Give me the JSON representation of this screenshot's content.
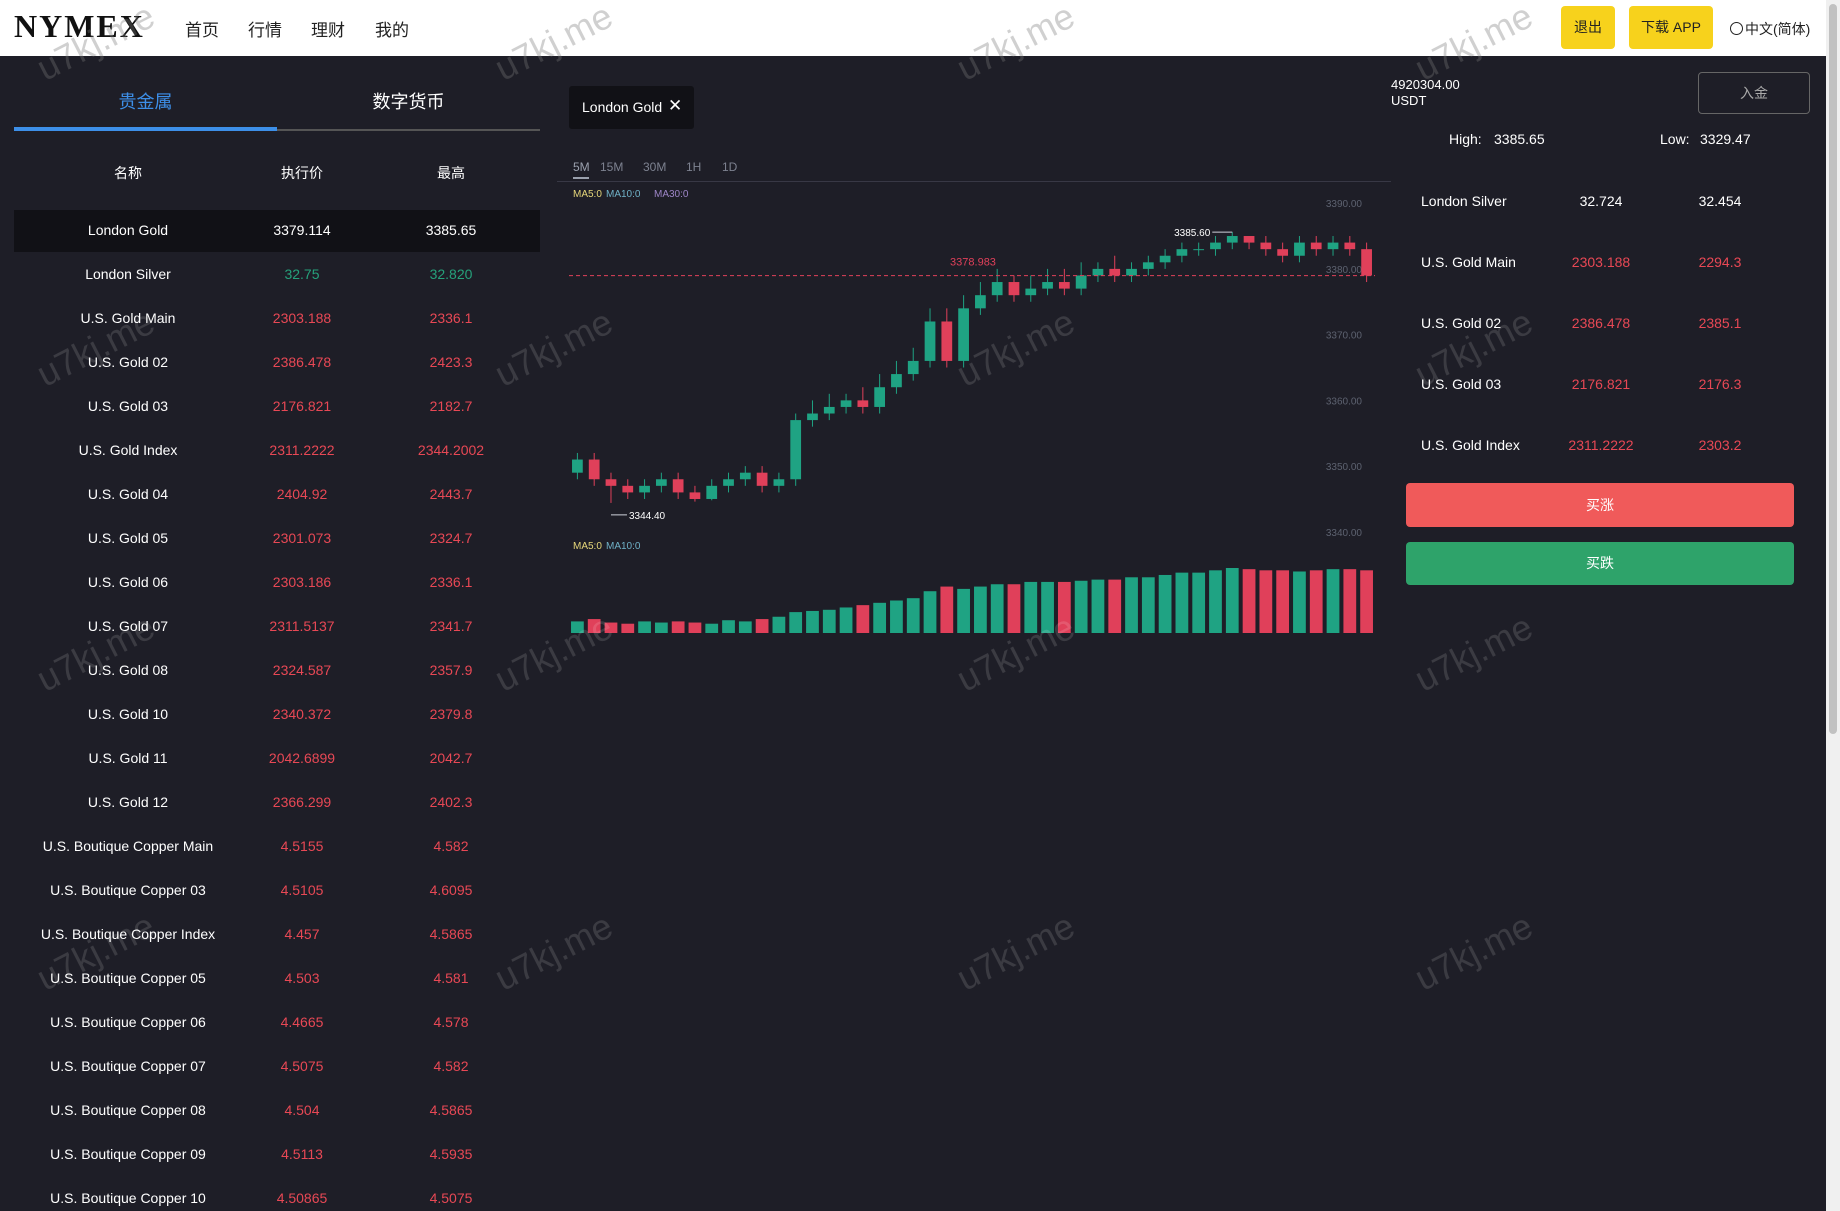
{
  "header": {
    "logo": "NYMEX",
    "nav": [
      "首页",
      "行情",
      "理财",
      "我的"
    ],
    "logout": "退出",
    "download": "下载 APP",
    "language": "中文(简体)"
  },
  "watermark": "u7kj.me",
  "market_list": {
    "tabs": [
      "贵金属",
      "数字货币"
    ],
    "columns": [
      "名称",
      "执行价",
      "最高"
    ],
    "rows": [
      {
        "name": "London Gold",
        "price": "3379.114",
        "high": "3385.65",
        "color": "#ffffff"
      },
      {
        "name": "London Silver",
        "price": "32.75",
        "high": "32.820",
        "color": "#26a17b"
      },
      {
        "name": "U.S. Gold Main",
        "price": "2303.188",
        "high": "2336.1",
        "color": "#e84855"
      },
      {
        "name": "U.S. Gold 02",
        "price": "2386.478",
        "high": "2423.3",
        "color": "#e84855"
      },
      {
        "name": "U.S. Gold 03",
        "price": "2176.821",
        "high": "2182.7",
        "color": "#e84855"
      },
      {
        "name": "U.S. Gold Index",
        "price": "2311.2222",
        "high": "2344.2002",
        "color": "#e84855"
      },
      {
        "name": "U.S. Gold 04",
        "price": "2404.92",
        "high": "2443.7",
        "color": "#e84855"
      },
      {
        "name": "U.S. Gold 05",
        "price": "2301.073",
        "high": "2324.7",
        "color": "#e84855"
      },
      {
        "name": "U.S. Gold 06",
        "price": "2303.186",
        "high": "2336.1",
        "color": "#e84855"
      },
      {
        "name": "U.S. Gold 07",
        "price": "2311.5137",
        "high": "2341.7",
        "color": "#e84855"
      },
      {
        "name": "U.S. Gold 08",
        "price": "2324.587",
        "high": "2357.9",
        "color": "#e84855"
      },
      {
        "name": "U.S. Gold 10",
        "price": "2340.372",
        "high": "2379.8",
        "color": "#e84855"
      },
      {
        "name": "U.S. Gold 11",
        "price": "2042.6899",
        "high": "2042.7",
        "color": "#e84855"
      },
      {
        "name": "U.S. Gold 12",
        "price": "2366.299",
        "high": "2402.3",
        "color": "#e84855"
      },
      {
        "name": "U.S. Boutique Copper Main",
        "price": "4.5155",
        "high": "4.582",
        "color": "#e84855"
      },
      {
        "name": "U.S. Boutique Copper 03",
        "price": "4.5105",
        "high": "4.6095",
        "color": "#e84855"
      },
      {
        "name": "U.S. Boutique Copper Index",
        "price": "4.457",
        "high": "4.5865",
        "color": "#e84855"
      },
      {
        "name": "U.S. Boutique Copper 05",
        "price": "4.503",
        "high": "4.581",
        "color": "#e84855"
      },
      {
        "name": "U.S. Boutique Copper 06",
        "price": "4.4665",
        "high": "4.578",
        "color": "#e84855"
      },
      {
        "name": "U.S. Boutique Copper 07",
        "price": "4.5075",
        "high": "4.582",
        "color": "#e84855"
      },
      {
        "name": "U.S. Boutique Copper 08",
        "price": "4.504",
        "high": "4.5865",
        "color": "#e84855"
      },
      {
        "name": "U.S. Boutique Copper 09",
        "price": "4.5113",
        "high": "4.5935",
        "color": "#e84855"
      },
      {
        "name": "U.S. Boutique Copper 10",
        "price": "4.50865",
        "high": "4.5075",
        "color": "#e84855"
      }
    ]
  },
  "chart_panel": {
    "symbol_tab": "London Gold",
    "intervals": [
      "5M",
      "15M",
      "30M",
      "1H",
      "1D"
    ],
    "ma_labels": [
      "MA5:0",
      "MA10:0",
      "MA30:0"
    ],
    "volume_ma_labels": [
      "MA5:0",
      "MA10:0"
    ]
  },
  "chart_data": {
    "type": "candlestick",
    "up_color": "#1fa383",
    "down_color": "#e0405a",
    "open": [
      3349,
      3351,
      3348,
      3347,
      3346,
      3347,
      3348,
      3346,
      3345,
      3347,
      3348,
      3349,
      3347,
      3348,
      3357,
      3358,
      3359,
      3360,
      3359,
      3362,
      3364,
      3366,
      3372,
      3366,
      3374,
      3376,
      3378,
      3376,
      3377,
      3378,
      3377,
      3379,
      3380,
      3379,
      3380,
      3381,
      3382,
      3383,
      3383,
      3384,
      3385,
      3384,
      3383,
      3382,
      3384,
      3383,
      3384,
      3383
    ],
    "high": [
      3352,
      3352,
      3349,
      3348,
      3348,
      3349,
      3349,
      3347,
      3348,
      3349,
      3350,
      3350,
      3349,
      3358,
      3360,
      3361,
      3361,
      3362,
      3364,
      3366,
      3368,
      3374,
      3374,
      3376,
      3378,
      3380,
      3379,
      3379,
      3380,
      3380,
      3381,
      3381,
      3382,
      3381,
      3382,
      3383,
      3384,
      3384,
      3385,
      3385.6,
      3385,
      3385,
      3384,
      3385,
      3385,
      3385,
      3385,
      3384
    ],
    "low": [
      3348,
      3347,
      3344.4,
      3345,
      3345,
      3346,
      3345,
      3344.6,
      3344.8,
      3346,
      3347,
      3346,
      3346,
      3347,
      3356,
      3357,
      3358,
      3358,
      3358,
      3361,
      3363,
      3365,
      3365,
      3365,
      3373,
      3375,
      3375,
      3375,
      3376,
      3376,
      3376,
      3378,
      3378,
      3378,
      3379,
      3380,
      3381,
      3382,
      3382,
      3383,
      3383,
      3382,
      3381,
      3381,
      3382,
      3382,
      3382,
      3378
    ],
    "close": [
      3351,
      3348,
      3347,
      3346,
      3347,
      3348,
      3346,
      3345,
      3347,
      3348,
      3349,
      3347,
      3348,
      3357,
      3358,
      3359,
      3360,
      3359,
      3362,
      3364,
      3366,
      3372,
      3366,
      3374,
      3376,
      3378,
      3376,
      3377,
      3378,
      3377,
      3379,
      3380,
      3379,
      3380,
      3381,
      3382,
      3383,
      3383,
      3384,
      3385,
      3384,
      3383,
      3382,
      3384,
      3383,
      3384,
      3383,
      3379
    ],
    "volume": [
      10,
      12,
      9,
      8,
      10,
      9,
      10,
      9,
      8,
      11,
      10,
      12,
      14,
      18,
      19,
      20,
      22,
      24,
      26,
      28,
      30,
      36,
      40,
      38,
      40,
      42,
      42,
      44,
      44,
      44,
      45,
      46,
      46,
      48,
      48,
      50,
      52,
      52,
      54,
      56,
      55,
      54,
      54,
      53,
      54,
      55,
      55,
      54
    ],
    "ylim": [
      3338,
      3392
    ],
    "yticks": [
      {
        "value": 3390,
        "label": "3390.00"
      },
      {
        "value": 3380,
        "label": "3380.00"
      },
      {
        "value": 3370,
        "label": "3370.00"
      },
      {
        "value": 3360,
        "label": "3360.00"
      },
      {
        "value": 3350,
        "label": "3350.00"
      },
      {
        "value": 3340,
        "label": "3340.00"
      }
    ],
    "reference_line": {
      "value": 3378.983,
      "label": "3378.983"
    },
    "annotations": [
      {
        "value": 3385.6,
        "label": "3385.60",
        "kind": "high"
      },
      {
        "value": 3344.4,
        "label": "3344.40",
        "kind": "low"
      }
    ]
  },
  "account": {
    "balance": "4920304.00",
    "currency": "USDT",
    "deposit": "入金",
    "high_label": "High:",
    "high": "3385.65",
    "low_label": "Low:",
    "low": "3329.47",
    "rows": [
      {
        "name": "London Silver",
        "price": "32.724",
        "low": "32.454",
        "color": "#ffffff"
      },
      {
        "name": "U.S. Gold Main",
        "price": "2303.188",
        "low": "2294.3",
        "color": "#e84855"
      },
      {
        "name": "U.S. Gold 02",
        "price": "2386.478",
        "low": "2385.1",
        "color": "#e84855"
      },
      {
        "name": "U.S. Gold 03",
        "price": "2176.821",
        "low": "2176.3",
        "color": "#e84855"
      },
      {
        "name": "U.S. Gold Index",
        "price": "2311.2222",
        "low": "2303.2",
        "color": "#e84855"
      }
    ],
    "buy_up": "买涨",
    "buy_down": "买跌"
  }
}
